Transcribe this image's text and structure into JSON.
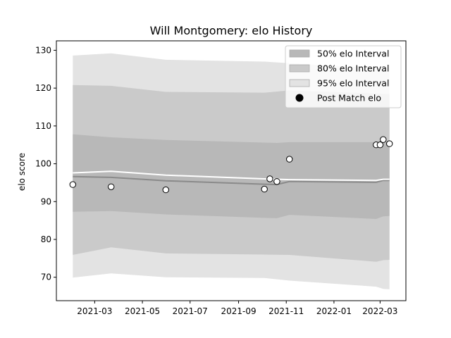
{
  "chart_data": {
    "type": "area",
    "title": "Will Montgomery: elo History",
    "xlabel": "",
    "ylabel": "elo score",
    "x_range": [
      "2021-01-11",
      "2022-04-03"
    ],
    "ylim": [
      63.8,
      132.5
    ],
    "x_ticks": [
      "2021-03-01",
      "2021-05-01",
      "2021-07-01",
      "2021-09-01",
      "2021-11-01",
      "2022-01-01",
      "2022-03-01"
    ],
    "x_tick_labels": [
      "2021-03",
      "2021-05",
      "2021-07",
      "2021-09",
      "2021-11",
      "2022-01",
      "2022-03"
    ],
    "y_ticks": [
      70,
      80,
      90,
      100,
      110,
      120,
      130
    ],
    "grid": false,
    "legend_position": "top-right",
    "bands": [
      {
        "name": "95% elo Interval",
        "color": "#e3e3e3",
        "x": [
          "2021-02-01",
          "2021-03-22",
          "2021-05-31",
          "2021-10-04",
          "2021-11-05",
          "2022-02-24",
          "2022-03-05",
          "2022-03-13"
        ],
        "upper": [
          128.6,
          129.2,
          127.5,
          127.0,
          126.6,
          125.2,
          124.8,
          124.4
        ],
        "lower": [
          69.9,
          71.0,
          70.0,
          69.8,
          69.1,
          67.5,
          66.9,
          66.8
        ]
      },
      {
        "name": "80% elo Interval",
        "color": "#cacaca",
        "x": [
          "2021-02-01",
          "2021-03-22",
          "2021-05-31",
          "2021-10-04",
          "2021-11-05",
          "2022-02-24",
          "2022-03-05",
          "2022-03-13"
        ],
        "upper": [
          120.8,
          120.6,
          119.0,
          118.8,
          119.4,
          118.6,
          118.5,
          118.4
        ],
        "lower": [
          75.9,
          77.9,
          76.3,
          76.0,
          75.9,
          74.1,
          74.5,
          74.6
        ]
      },
      {
        "name": "50% elo Interval",
        "color": "#b8b8b8",
        "x": [
          "2021-02-01",
          "2021-03-22",
          "2021-05-31",
          "2021-10-04",
          "2021-10-20",
          "2021-11-05",
          "2022-02-24",
          "2022-03-05",
          "2022-03-13"
        ],
        "upper": [
          107.8,
          107.0,
          106.3,
          105.6,
          105.5,
          105.7,
          105.7,
          105.8,
          105.8
        ],
        "lower": [
          87.3,
          87.5,
          86.6,
          85.7,
          85.6,
          86.5,
          85.4,
          86.1,
          86.2
        ]
      }
    ],
    "lines": [
      {
        "name": "median",
        "color": "#8a8a8a",
        "x": [
          "2021-02-01",
          "2021-03-22",
          "2021-05-31",
          "2021-10-04",
          "2021-10-20",
          "2021-11-05",
          "2022-02-24",
          "2022-03-05",
          "2022-03-13"
        ],
        "y": [
          96.6,
          96.4,
          95.5,
          94.6,
          94.5,
          95.3,
          95.1,
          95.6,
          95.6
        ]
      },
      {
        "name": "mean",
        "color": "#ffffff",
        "x": [
          "2021-02-01",
          "2021-03-22",
          "2021-05-31",
          "2021-10-04",
          "2021-11-05",
          "2022-02-24",
          "2022-03-05",
          "2022-03-13"
        ],
        "y": [
          97.6,
          98.0,
          97.0,
          96.0,
          95.8,
          95.6,
          95.9,
          95.9
        ]
      }
    ],
    "points": {
      "name": "Post Match elo",
      "x": [
        "2021-02-01",
        "2021-03-22",
        "2021-05-31",
        "2021-10-04",
        "2021-10-11",
        "2021-10-20",
        "2021-11-05",
        "2022-02-24",
        "2022-03-01",
        "2022-03-05",
        "2022-03-13"
      ],
      "y": [
        94.5,
        93.9,
        93.1,
        93.3,
        96.0,
        95.3,
        101.2,
        105.0,
        105.0,
        106.4,
        105.3
      ]
    },
    "legend": [
      {
        "label": "50% elo Interval",
        "kind": "patch",
        "color": "#b8b8b8"
      },
      {
        "label": "80% elo Interval",
        "kind": "patch",
        "color": "#cacaca"
      },
      {
        "label": "95% elo Interval",
        "kind": "patch",
        "color": "#e3e3e3"
      },
      {
        "label": "Post Match elo",
        "kind": "marker",
        "color": "#000000"
      }
    ]
  }
}
